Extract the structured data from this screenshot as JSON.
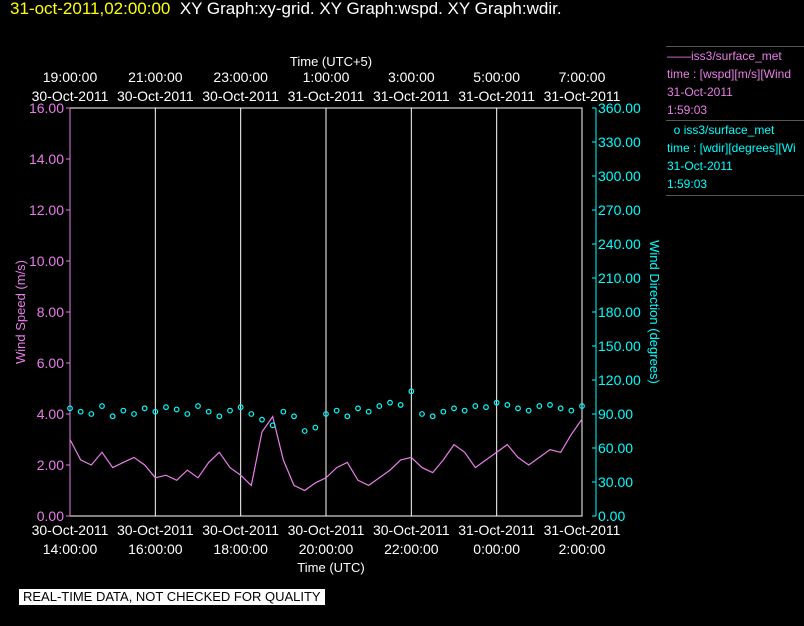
{
  "header": {
    "timestamp": "31-oct-2011,02:00:00",
    "titles": "XY Graph:xy-grid.  XY Graph:wspd.  XY Graph:wdir."
  },
  "footer": {
    "note": "REAL-TIME DATA, NOT CHECKED FOR QUALITY"
  },
  "legend": {
    "wspd": {
      "name": "iss3/surface_met",
      "line1": "time : [wspd][m/s][Wind",
      "date": "31-Oct-2011",
      "time": "1:59:03",
      "color": "#e87de8"
    },
    "wdir": {
      "name": "iss3/surface_met",
      "line1": "time : [wdir][degrees][Wi",
      "date": "31-Oct-2011",
      "time": "1:59:03",
      "color": "#00ffff"
    }
  },
  "chart_data": {
    "type": "line",
    "top_axis": {
      "label": "Time (UTC+5)",
      "ticks": [
        {
          "time": "19:00:00",
          "date": "30-Oct-2011"
        },
        {
          "time": "21:00:00",
          "date": "30-Oct-2011"
        },
        {
          "time": "23:00:00",
          "date": "30-Oct-2011"
        },
        {
          "time": "1:00:00",
          "date": "31-Oct-2011"
        },
        {
          "time": "3:00:00",
          "date": "31-Oct-2011"
        },
        {
          "time": "5:00:00",
          "date": "31-Oct-2011"
        },
        {
          "time": "7:00:00",
          "date": "31-Oct-2011"
        }
      ]
    },
    "bottom_axis": {
      "label": "Time (UTC)",
      "ticks": [
        {
          "date": "30-Oct-2011",
          "time": "14:00:00"
        },
        {
          "date": "30-Oct-2011",
          "time": "16:00:00"
        },
        {
          "date": "30-Oct-2011",
          "time": "18:00:00"
        },
        {
          "date": "30-Oct-2011",
          "time": "20:00:00"
        },
        {
          "date": "30-Oct-2011",
          "time": "22:00:00"
        },
        {
          "date": "31-Oct-2011",
          "time": "0:00:00"
        },
        {
          "date": "31-Oct-2011",
          "time": "2:00:00"
        }
      ],
      "xlim": [
        0,
        12
      ],
      "vgrid": true
    },
    "left_axis": {
      "label": "Wind Speed (m/s)",
      "ylim": [
        0,
        16
      ],
      "ticks": [
        "0.00",
        "2.00",
        "4.00",
        "6.00",
        "8.00",
        "10.00",
        "12.00",
        "14.00",
        "16.00"
      ]
    },
    "right_axis": {
      "label": "Wind Direction (degrees)",
      "ylim": [
        0,
        360
      ],
      "ticks": [
        "0.00",
        "30.00",
        "60.00",
        "90.00",
        "120.00",
        "150.00",
        "180.00",
        "210.00",
        "240.00",
        "270.00",
        "300.00",
        "330.00",
        "360.00"
      ]
    },
    "series": [
      {
        "name": "iss3/surface_met",
        "var": "wspd",
        "axis": "left",
        "style": "line",
        "color": "#e87de8",
        "x": [
          0,
          0.25,
          0.5,
          0.75,
          1,
          1.25,
          1.5,
          1.75,
          2,
          2.25,
          2.5,
          2.75,
          3,
          3.25,
          3.5,
          3.75,
          4,
          4.25,
          4.5,
          4.75,
          5,
          5.25,
          5.5,
          5.75,
          6,
          6.25,
          6.5,
          6.75,
          7,
          7.25,
          7.5,
          7.75,
          8,
          8.25,
          8.5,
          8.75,
          9,
          9.25,
          9.5,
          9.75,
          10,
          10.25,
          10.5,
          10.75,
          11,
          11.25,
          11.5,
          11.75,
          12
        ],
        "y": [
          3.0,
          2.2,
          2.0,
          2.5,
          1.9,
          2.1,
          2.3,
          2.0,
          1.5,
          1.6,
          1.4,
          1.8,
          1.5,
          2.1,
          2.5,
          1.9,
          1.6,
          1.2,
          3.3,
          3.9,
          2.2,
          1.2,
          1.0,
          1.3,
          1.5,
          1.9,
          2.1,
          1.4,
          1.2,
          1.5,
          1.8,
          2.2,
          2.3,
          1.9,
          1.7,
          2.2,
          2.8,
          2.5,
          1.9,
          2.2,
          2.5,
          2.8,
          2.3,
          2.0,
          2.3,
          2.6,
          2.5,
          3.2,
          3.8
        ]
      },
      {
        "name": "iss3/surface_met",
        "var": "wdir",
        "axis": "right",
        "style": "marker",
        "color": "#00ffff",
        "x": [
          0,
          0.25,
          0.5,
          0.75,
          1,
          1.25,
          1.5,
          1.75,
          2,
          2.25,
          2.5,
          2.75,
          3,
          3.25,
          3.5,
          3.75,
          4,
          4.25,
          4.5,
          4.75,
          5,
          5.25,
          5.5,
          5.75,
          6,
          6.25,
          6.5,
          6.75,
          7,
          7.25,
          7.5,
          7.75,
          8,
          8.25,
          8.5,
          8.75,
          9,
          9.25,
          9.5,
          9.75,
          10,
          10.25,
          10.5,
          10.75,
          11,
          11.25,
          11.5,
          11.75,
          12
        ],
        "y": [
          95,
          92,
          90,
          97,
          88,
          93,
          90,
          95,
          92,
          96,
          94,
          90,
          97,
          92,
          88,
          93,
          96,
          90,
          85,
          80,
          92,
          88,
          75,
          78,
          90,
          93,
          88,
          95,
          92,
          97,
          100,
          98,
          110,
          90,
          88,
          92,
          95,
          93,
          97,
          96,
          100,
          98,
          95,
          93,
          97,
          98,
          95,
          93,
          97
        ]
      }
    ]
  }
}
